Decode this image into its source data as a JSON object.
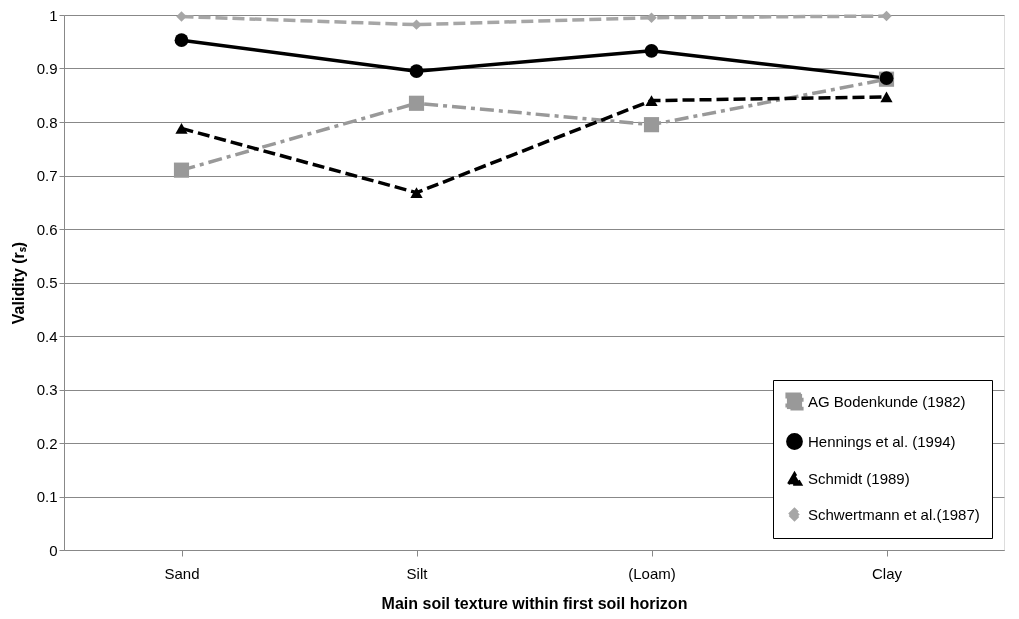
{
  "chart_data": {
    "type": "line",
    "xlabel": "Main soil texture within first soil horizon",
    "ylabel": "Validity (rₛ)",
    "categories": [
      "Sand",
      "Silt",
      "(Loam)",
      "Clay"
    ],
    "ylim": [
      0,
      1
    ],
    "yticks": [
      0,
      0.1,
      0.2,
      0.3,
      0.4,
      0.5,
      0.6,
      0.7,
      0.8,
      0.9,
      1
    ],
    "grid": "y",
    "legend": "bottom right",
    "series": [
      {
        "name": "AG Bodenkunde (1982)",
        "color": "#999999",
        "marker": "square",
        "line_style": "dashdot",
        "values": [
          0.71,
          0.835,
          0.795,
          0.88
        ]
      },
      {
        "name": "Hennings et al. (1994)",
        "color": "#000000",
        "marker": "circle",
        "line_style": "solid",
        "values": [
          0.953,
          0.895,
          0.933,
          0.882
        ]
      },
      {
        "name": "Schmidt (1989)",
        "color": "#000000",
        "marker": "triangle",
        "line_style": "dashed",
        "values": [
          0.788,
          0.668,
          0.84,
          0.847
        ]
      },
      {
        "name": "Schwertmann et al.(1987)",
        "color": "#a6a6a6",
        "marker": "diamond",
        "line_style": "dashed",
        "values": [
          0.997,
          0.982,
          0.995,
          0.998
        ]
      }
    ]
  }
}
